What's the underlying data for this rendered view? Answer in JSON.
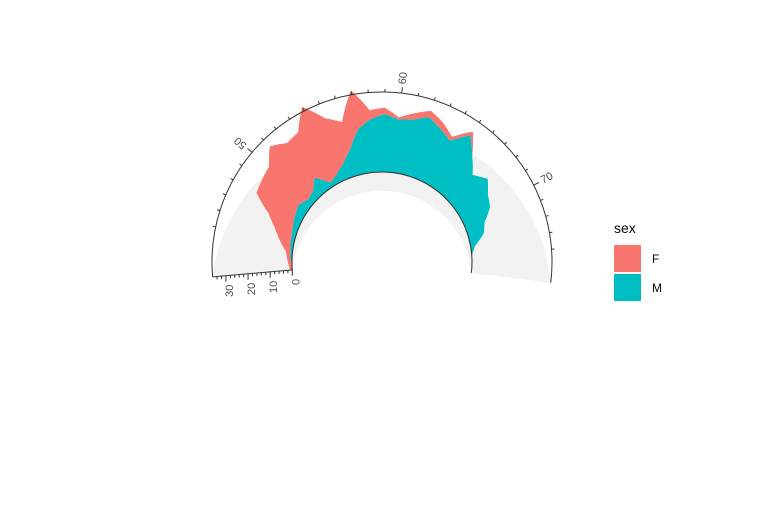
{
  "chart_data": {
    "type": "area",
    "coord": "polar-partial",
    "stacked": true,
    "theta_axis": {
      "ticks": [
        50,
        60,
        70
      ],
      "minor_ticks": [
        45,
        46,
        47,
        48,
        49,
        51,
        52,
        53,
        54,
        55,
        56,
        57,
        58,
        59,
        61,
        62,
        63,
        64,
        65,
        66,
        67,
        68,
        69,
        71,
        72,
        73,
        74
      ],
      "range": [
        42,
        76
      ]
    },
    "r_axis": {
      "ticks": [
        0,
        10,
        20,
        30
      ],
      "minor_ticks": [
        2,
        4,
        6,
        8,
        12,
        14,
        16,
        18,
        22,
        24,
        26,
        28,
        32,
        34
      ],
      "range": [
        0,
        36
      ]
    },
    "x": [
      42,
      44,
      46,
      47,
      48,
      49,
      50,
      51,
      52,
      53,
      54,
      55,
      56,
      57,
      58,
      59,
      60,
      61,
      62,
      63,
      64,
      65,
      66,
      67,
      68,
      69,
      70,
      71,
      72,
      73,
      74
    ],
    "series": [
      {
        "name": "M",
        "color": "#00BFC4",
        "values": [
          0,
          1,
          2,
          3,
          4,
          5,
          3,
          4,
          8,
          2,
          4,
          7,
          12,
          20,
          24,
          26,
          24,
          25,
          28,
          25,
          22,
          29,
          22,
          16,
          20,
          16,
          14,
          9,
          7,
          2,
          0
        ]
      },
      {
        "name": "F",
        "color": "#F8766D",
        "values": [
          1,
          2,
          8,
          12,
          20,
          20,
          23,
          28,
          20,
          27,
          34,
          22,
          13,
          18,
          4,
          3,
          1,
          3,
          3,
          3,
          2,
          2,
          0,
          0,
          0,
          0,
          0,
          0,
          0,
          0,
          0
        ]
      }
    ],
    "panel_background": "#F2F2F2",
    "legend": {
      "title": "sex",
      "position": "right",
      "entries": [
        {
          "label": "F",
          "color": "#F8766D"
        },
        {
          "label": "M",
          "color": "#00BFC4"
        }
      ]
    }
  }
}
